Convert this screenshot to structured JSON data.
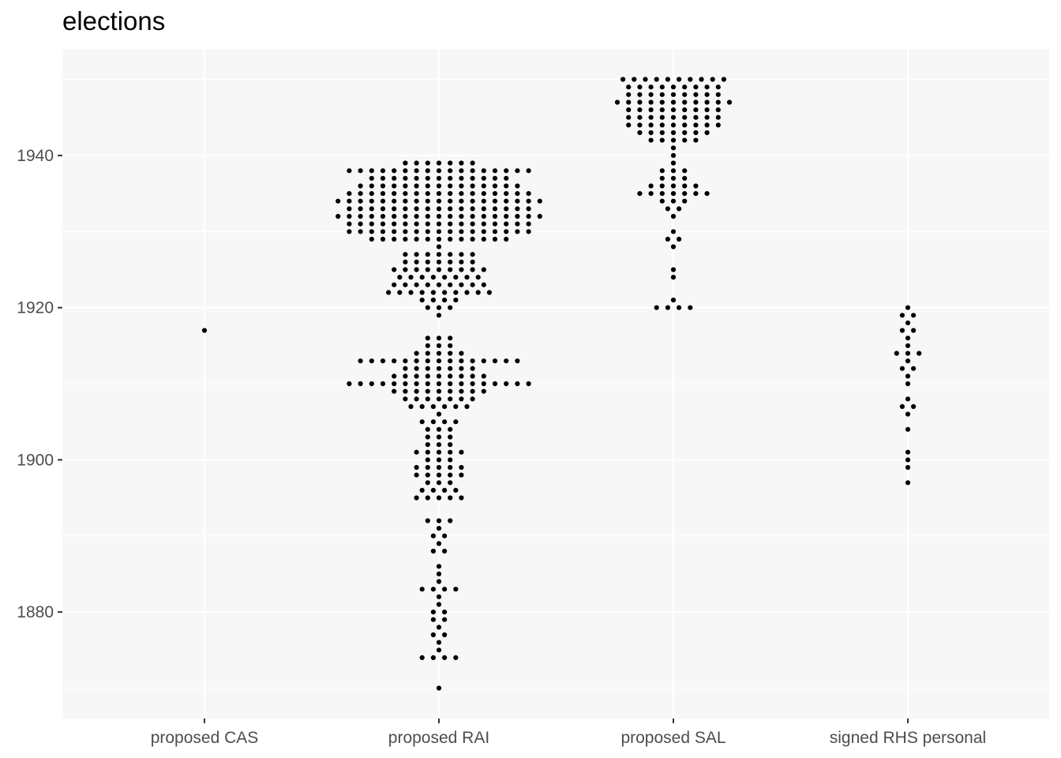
{
  "chart_data": {
    "type": "scatter",
    "subtype": "dotplot",
    "title": "elections",
    "xlabel": "",
    "ylabel": "",
    "categories": [
      "proposed CAS",
      "proposed RAI",
      "proposed SAL",
      "signed RHS personal"
    ],
    "ylim": [
      1866,
      1954
    ],
    "yticks": [
      1880,
      1900,
      1920,
      1940
    ],
    "grid": true,
    "legend": "none",
    "colors": {
      "panel": "#f7f7f7",
      "grid": "#ffffff",
      "point": "#000000",
      "tick_text": "#4d4d4d"
    },
    "groups": [
      {
        "category": "proposed CAS",
        "counts": {
          "1917": 1
        }
      },
      {
        "category": "proposed RAI",
        "counts": {
          "1870": 1,
          "1874": 4,
          "1875": 1,
          "1876": 1,
          "1877": 2,
          "1878": 1,
          "1879": 2,
          "1880": 2,
          "1881": 1,
          "1882": 1,
          "1883": 4,
          "1884": 1,
          "1885": 1,
          "1886": 1,
          "1888": 2,
          "1889": 1,
          "1890": 2,
          "1891": 1,
          "1892": 3,
          "1895": 5,
          "1896": 4,
          "1897": 3,
          "1898": 5,
          "1899": 5,
          "1900": 3,
          "1901": 5,
          "1902": 3,
          "1903": 3,
          "1904": 3,
          "1905": 4,
          "1906": 1,
          "1907": 6,
          "1908": 7,
          "1909": 9,
          "1910": 17,
          "1911": 9,
          "1912": 7,
          "1913": 15,
          "1914": 5,
          "1915": 3,
          "1916": 3,
          "1919": 1,
          "1920": 3,
          "1921": 4,
          "1922": 10,
          "1923": 9,
          "1924": 8,
          "1925": 9,
          "1926": 7,
          "1927": 7,
          "1928": 1,
          "1929": 13,
          "1930": 17,
          "1931": 17,
          "1932": 19,
          "1933": 17,
          "1934": 19,
          "1935": 17,
          "1936": 15,
          "1937": 13,
          "1938": 17,
          "1939": 7
        }
      },
      {
        "category": "proposed SAL",
        "counts": {
          "1920": 4,
          "1921": 1,
          "1924": 1,
          "1925": 1,
          "1928": 1,
          "1929": 2,
          "1930": 1,
          "1932": 1,
          "1933": 2,
          "1934": 3,
          "1935": 7,
          "1936": 5,
          "1937": 3,
          "1938": 3,
          "1939": 1,
          "1940": 1,
          "1941": 1,
          "1942": 5,
          "1943": 7,
          "1944": 9,
          "1945": 9,
          "1946": 9,
          "1947": 11,
          "1948": 9,
          "1949": 9,
          "1950": 10
        }
      },
      {
        "category": "signed RHS personal",
        "counts": {
          "1897": 1,
          "1899": 1,
          "1900": 1,
          "1901": 1,
          "1904": 1,
          "1906": 1,
          "1907": 2,
          "1908": 1,
          "1910": 1,
          "1911": 1,
          "1912": 2,
          "1913": 1,
          "1914": 3,
          "1915": 1,
          "1916": 1,
          "1917": 2,
          "1918": 1,
          "1919": 2,
          "1920": 1
        }
      }
    ]
  }
}
